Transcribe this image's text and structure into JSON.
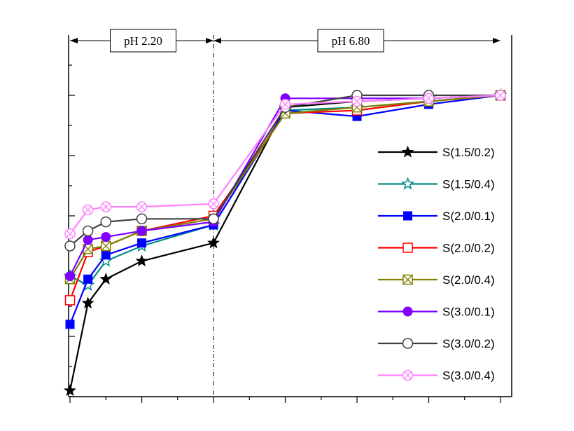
{
  "chart_data": {
    "type": "line",
    "title": "",
    "xlabel": "",
    "ylabel": "",
    "x_positions": [
      0,
      0.25,
      0.5,
      1,
      2,
      3,
      4,
      5,
      6
    ],
    "xlim": [
      0,
      6.2
    ],
    "ylim": [
      0,
      10
    ],
    "phases": [
      {
        "label": "pH 2.20",
        "start": 0,
        "end": 2
      },
      {
        "label": "pH 6.80",
        "start": 2,
        "end": 6
      }
    ],
    "series": [
      {
        "name": "S(1.5/0.2)",
        "color": "#000000",
        "marker": "star-filled",
        "values": [
          0.2,
          3.1,
          3.9,
          4.5,
          5.1,
          9.6,
          9.8,
          9.9,
          10.0
        ]
      },
      {
        "name": "S(1.5/0.4)",
        "color": "#008b8b",
        "marker": "star-open",
        "values": [
          4.0,
          3.7,
          4.5,
          5.0,
          5.7,
          9.5,
          9.6,
          9.8,
          10.0
        ]
      },
      {
        "name": "S(2.0/0.1)",
        "color": "#0000ff",
        "marker": "square-filled",
        "values": [
          2.4,
          3.9,
          4.7,
          5.1,
          5.7,
          9.5,
          9.3,
          9.7,
          10.0
        ]
      },
      {
        "name": "S(2.0/0.2)",
        "color": "#ff0000",
        "marker": "square-open",
        "values": [
          3.2,
          4.8,
          5.0,
          5.5,
          6.0,
          9.4,
          9.5,
          9.8,
          10.0
        ]
      },
      {
        "name": "S(2.0/0.4)",
        "color": "#808000",
        "marker": "square-x",
        "values": [
          3.9,
          4.9,
          5.0,
          5.5,
          5.9,
          9.4,
          9.6,
          9.8,
          10.0
        ]
      },
      {
        "name": "S(3.0/0.1)",
        "color": "#8000ff",
        "marker": "circle-filled",
        "values": [
          4.0,
          5.2,
          5.3,
          5.5,
          5.8,
          9.9,
          9.9,
          9.9,
          10.0
        ]
      },
      {
        "name": "S(3.0/0.2)",
        "color": "#404040",
        "marker": "circle-open",
        "values": [
          5.0,
          5.5,
          5.8,
          5.9,
          5.9,
          9.6,
          10.0,
          10.0,
          10.0
        ]
      },
      {
        "name": "S(3.0/0.4)",
        "color": "#ff80ff",
        "marker": "circle-x",
        "values": [
          5.4,
          6.2,
          6.3,
          6.3,
          6.4,
          9.7,
          9.8,
          9.9,
          10.0
        ]
      }
    ]
  }
}
